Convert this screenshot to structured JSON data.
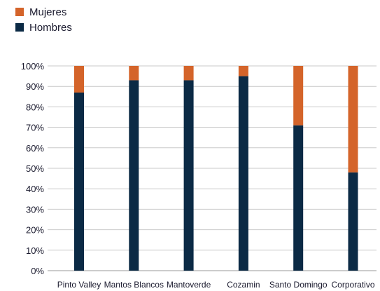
{
  "chart_data": {
    "type": "bar",
    "stacked": true,
    "categories": [
      "Pinto Valley",
      "Mantos Blancos",
      "Mantoverde",
      "Cozamin",
      "Santo Domingo",
      "Corporativo"
    ],
    "series": [
      {
        "name": "Hombres",
        "color": "#0b2a45",
        "values": [
          87,
          93,
          93,
          95,
          71,
          48
        ]
      },
      {
        "name": "Mujeres",
        "color": "#d4642a",
        "values": [
          13,
          7,
          7,
          5,
          29,
          52
        ]
      }
    ],
    "y_ticks": [
      "0%",
      "10%",
      "20%",
      "30%",
      "40%",
      "50%",
      "60%",
      "70%",
      "80%",
      "90%",
      "100%"
    ],
    "ylim": [
      0,
      100
    ],
    "grid": true,
    "legend_position": "top-left"
  }
}
